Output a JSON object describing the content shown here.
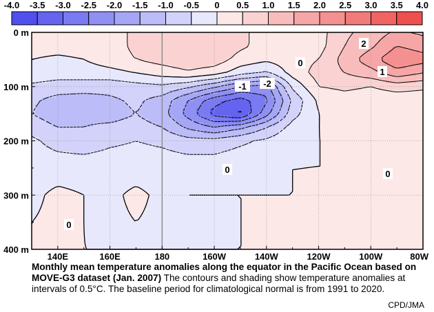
{
  "chart_data": {
    "type": "heatmap",
    "subtype": "contour-section",
    "colorbar": {
      "ticks": [
        "-4.0",
        "-3.5",
        "-3.0",
        "-2.5",
        "-2.0",
        "-1.5",
        "-1.0",
        "-0.5",
        "0",
        "0.5",
        "1.0",
        "1.5",
        "2.0",
        "2.5",
        "3.0",
        "3.5",
        "4.0"
      ],
      "colors": [
        "#5050ee",
        "#6464f0",
        "#7a7af2",
        "#9090f4",
        "#a6a6f6",
        "#bcbcf8",
        "#d2d2fa",
        "#e8e8fd",
        "#fde8e8",
        "#fad2d2",
        "#f8bcbc",
        "#f6a6a6",
        "#f49090",
        "#f27a7a",
        "#f06464",
        "#ee5050"
      ],
      "unit": "°C"
    },
    "xaxis": {
      "ticks": [
        "140E",
        "160E",
        "180",
        "160W",
        "140W",
        "120W",
        "100W",
        "80W"
      ],
      "range_deg_east": [
        130,
        280
      ]
    },
    "yaxis": {
      "ticks": [
        "0 m",
        "100 m",
        "200 m",
        "300 m",
        "400 m"
      ],
      "range_m": [
        0,
        400
      ],
      "inverted": true
    },
    "contour_interval": 0.5,
    "contour_labels": [
      "2",
      "0",
      "1",
      "-1",
      "-2",
      "0",
      "0",
      "0"
    ],
    "anomaly_field": {
      "lon_deg_east": [
        130,
        140,
        150,
        160,
        170,
        180,
        190,
        200,
        210,
        220,
        230,
        240,
        250,
        260,
        270,
        280
      ],
      "depth_m": [
        0,
        25,
        50,
        75,
        100,
        125,
        150,
        175,
        200,
        250,
        300,
        350,
        400
      ],
      "values": [
        [
          0.3,
          0.2,
          0.2,
          0.3,
          0.6,
          0.8,
          0.9,
          0.9,
          0.6,
          0.3,
          0.1,
          0.3,
          0.9,
          1.2,
          1.6,
          1.4
        ],
        [
          0.2,
          0.2,
          0.2,
          0.3,
          0.6,
          0.8,
          0.9,
          0.9,
          0.6,
          0.3,
          0.2,
          0.3,
          1.0,
          1.4,
          2.0,
          1.8
        ],
        [
          0.0,
          -0.1,
          0.0,
          0.3,
          0.5,
          0.7,
          0.9,
          0.8,
          0.3,
          0.1,
          0.3,
          0.5,
          1.2,
          1.8,
          2.4,
          2.2
        ],
        [
          -0.2,
          -0.3,
          -0.3,
          -0.2,
          0.0,
          0.2,
          0.4,
          0.2,
          -0.3,
          -0.6,
          0.2,
          0.7,
          1.0,
          1.3,
          1.8,
          1.5
        ],
        [
          -0.6,
          -0.7,
          -0.7,
          -0.8,
          -0.7,
          -0.6,
          -0.9,
          -1.4,
          -2.0,
          -2.2,
          -0.4,
          0.5,
          0.6,
          0.5,
          0.7,
          0.6
        ],
        [
          -0.9,
          -1.2,
          -1.3,
          -1.1,
          -0.9,
          -1.2,
          -2.0,
          -2.8,
          -3.2,
          -2.6,
          -0.9,
          0.1,
          0.3,
          0.2,
          0.2,
          0.2
        ],
        [
          -1.0,
          -1.3,
          -1.1,
          -1.2,
          -1.0,
          -1.3,
          -2.2,
          -3.2,
          -3.6,
          -2.2,
          -0.7,
          0.0,
          0.2,
          0.1,
          0.1,
          0.1
        ],
        [
          -0.7,
          -1.0,
          -1.0,
          -0.9,
          -0.8,
          -1.0,
          -1.6,
          -2.0,
          -1.6,
          -1.0,
          -0.3,
          0.0,
          0.1,
          0.1,
          0.0,
          0.1
        ],
        [
          -0.4,
          -0.7,
          -0.8,
          -0.6,
          -0.5,
          -0.6,
          -0.8,
          -0.8,
          -0.6,
          -0.4,
          -0.1,
          0.0,
          0.0,
          0.0,
          0.0,
          0.0
        ],
        [
          -0.2,
          -0.2,
          -0.2,
          -0.2,
          -0.2,
          -0.2,
          -0.2,
          -0.2,
          -0.1,
          -0.1,
          0.0,
          0.0,
          0.0,
          0.0,
          0.0,
          0.0
        ],
        [
          -0.1,
          0.1,
          0.0,
          -0.1,
          0.1,
          -0.1,
          0.0,
          0.0,
          0.0,
          0.0,
          0.0,
          0.1,
          0.0,
          0.1,
          0.2,
          0.1
        ],
        [
          0.0,
          0.1,
          0.0,
          -0.1,
          0.0,
          -0.1,
          0.0,
          -0.1,
          0.0,
          0.0,
          0.0,
          0.1,
          0.1,
          0.1,
          0.2,
          0.1
        ],
        [
          0.0,
          0.1,
          0.0,
          0.0,
          0.0,
          0.0,
          0.0,
          0.0,
          0.0,
          0.0,
          0.0,
          0.1,
          0.1,
          0.1,
          0.2,
          0.1
        ]
      ]
    }
  },
  "caption": {
    "title": "Monthly mean temperature anomalies along the equator in the Pacific Ocean based on MOVE-G3 dataset (Jan. 2007)",
    "body": " The contours and shading show temperature anomalies at intervals of 0.5°C.  The baseline period for climatological normal is from 1991 to 2020."
  },
  "credit": "CPD/JMA"
}
